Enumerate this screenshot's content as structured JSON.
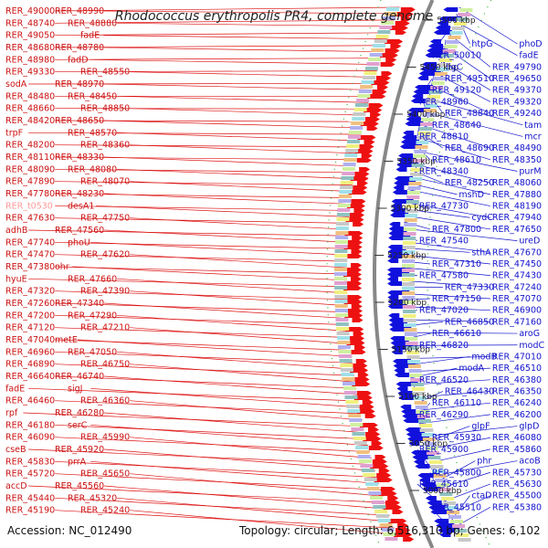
{
  "title": "Rhodococcus erythropolis PR4, complete genome",
  "footer": {
    "accession": "Accession: NC_012490",
    "topology": "Topology: circular; Length: 6,516,310 bp; Genes: 6,102"
  },
  "colors": {
    "forward": "#ee1111",
    "reverse": "#1111dd",
    "backbone": "#888888",
    "highlight": "#ff9999"
  },
  "scale_labels": [
    "5500 kbp",
    "5450 kbp",
    "5400 kbp",
    "5350 kbp",
    "5300 kbp",
    "5250 kbp",
    "5200 kbp",
    "5150 kbp",
    "5100 kbp",
    "5050 kbp",
    "5000 kbp"
  ],
  "left_labels": [
    "RER_49000",
    "RER_48990",
    "RER_48740",
    "RER_48880",
    "RER_49050",
    "fadE",
    "RER_48680",
    "RER_48780",
    "RER_48980",
    "fadD",
    "RER_49330",
    "RER_48550",
    "sodA",
    "RER_48970",
    "RER_48480",
    "RER_48450",
    "RER_48660",
    "RER_48850",
    "RER_48420",
    "RER_48650",
    "trpF",
    "RER_48570",
    "RER_48200",
    "RER_48360",
    "RER_48110",
    "RER_48330",
    "RER_48090",
    "RER_48080",
    "RER_47890",
    "RER_48070",
    "RER_47780",
    "RER_48230",
    "RER_t0530",
    "desA1",
    "RER_47630",
    "RER_47750",
    "adhB",
    "RER_47560",
    "RER_47740",
    "phoU",
    "RER_47470",
    "RER_47620",
    "RER_47380",
    "ohr",
    "hyuE",
    "RER_47660",
    "RER_47320",
    "RER_47390",
    "RER_47260",
    "RER_47340",
    "RER_47200",
    "RER_47290",
    "RER_47120",
    "RER_47210",
    "RER_47040",
    "metE",
    "RER_46960",
    "RER_47050",
    "RER_46890",
    "RER_46750",
    "RER_46640",
    "RER_46740",
    "fadE",
    "sigJ",
    "RER_46460",
    "RER_46360",
    "rpf",
    "RER_46280",
    "RER_46180",
    "serC",
    "RER_46090",
    "RER_45990",
    "cseB",
    "RER_45920",
    "RER_45830",
    "prrA",
    "RER_45720",
    "RER_45650",
    "accD",
    "RER_45560",
    "RER_45440",
    "RER_45320",
    "RER_45190",
    "RER_45240"
  ],
  "right_labels": [
    "phoD",
    "htpG",
    "fadE",
    "RER_50010",
    "RER_49790",
    "ligC",
    "RER_49650",
    "RER_49510",
    "RER_49370",
    "RER_49120",
    "RER_49320",
    "RER_48960",
    "RER_49240",
    "RER_48840",
    "tam",
    "RER_48640",
    "mcr",
    "RER_48810",
    "RER_48490",
    "RER_48690",
    "RER_48350",
    "RER_48610",
    "purM",
    "RER_48340",
    "RER_48060",
    "RER_48250",
    "RER_47880",
    "mshD",
    "RER_48190",
    "RER_47730",
    "RER_47940",
    "cydC",
    "RER_47650",
    "RER_47800",
    "ureD",
    "RER_47540",
    "RER_47670",
    "sthA",
    "RER_47450",
    "RER_47310",
    "RER_47430",
    "RER_47580",
    "RER_47240",
    "RER_47330",
    "RER_47070",
    "RER_47150",
    "RER_46900",
    "RER_47020",
    "RER_47160",
    "RER_46850",
    "aroG",
    "RER_46610",
    "modC",
    "RER_46820",
    "RER_47010",
    "modB",
    "RER_46510",
    "modA",
    "RER_46380",
    "RER_46520",
    "RER_46350",
    "RER_46430",
    "RER_46240",
    "RER_46110",
    "RER_46200",
    "RER_46290",
    "glpD",
    "glpF",
    "RER_46080",
    "RER_45930",
    "RER_45860",
    "RER_45900",
    "acoB",
    "phr",
    "RER_45730",
    "RER_45800",
    "RER_45630",
    "RER_45610",
    "RER_45500",
    "ctaD",
    "RER_45380",
    "RER_45510"
  ]
}
